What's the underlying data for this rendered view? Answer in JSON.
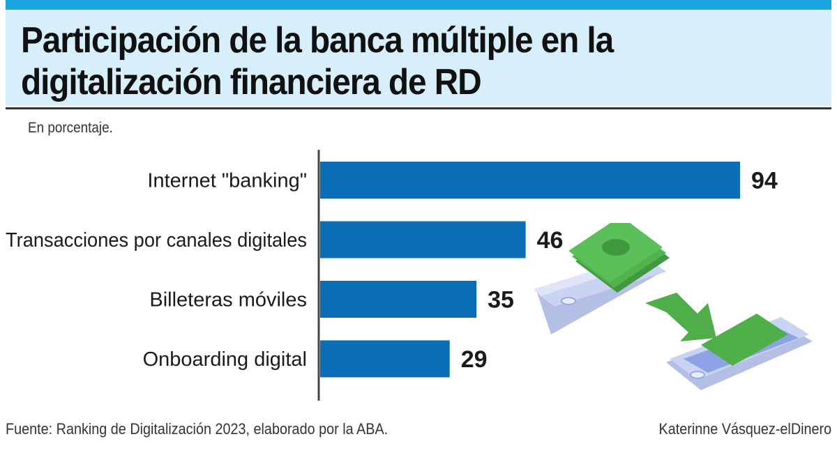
{
  "header": {
    "title": "Participación de la banca múltiple en la\ndigitalización financiera  de RD"
  },
  "subtitle": "En porcentaje.",
  "chart_data": {
    "type": "bar",
    "orientation": "horizontal",
    "categories": [
      "Internet \"banking\"",
      "Transacciones por canales digitales",
      "Billeteras móviles",
      "Onboarding digital"
    ],
    "values": [
      94,
      46,
      35,
      29
    ],
    "data_labels": [
      "94",
      "46",
      "35",
      "29"
    ],
    "unit": "En porcentaje.",
    "xlim": [
      0,
      100
    ],
    "grid": false,
    "legend": "none",
    "bar_color": "#0a6db5"
  },
  "footer": {
    "source": "Fuente: Ranking de Digitalización 2023, elaborado por la ABA.",
    "author": "Katerinne Vásquez-elDinero"
  },
  "illustration": {
    "icons": [
      "phone-icon",
      "money-stack-icon",
      "transfer-arrow-icon",
      "phone-icon"
    ],
    "colors": {
      "phone": "#c9d3f2",
      "screen": "#8da3e6",
      "money": "#4fb04a",
      "arrow": "#4fae4a"
    }
  }
}
